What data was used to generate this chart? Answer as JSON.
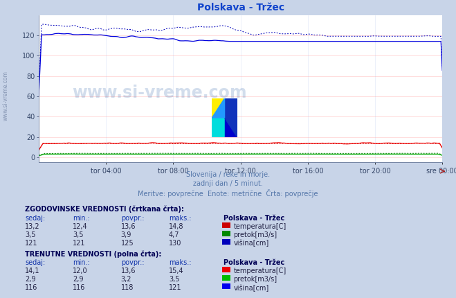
{
  "title": "Polskava - Tržec",
  "title_color": "#1144cc",
  "bg_color": "#c8d4e8",
  "plot_bg_color": "#ffffff",
  "grid_color": "#ff9999",
  "grid_color_v": "#bbccee",
  "xlabel_times": [
    "tor 04:00",
    "tor 08:00",
    "tor 12:00",
    "tor 16:00",
    "tor 20:00",
    "sre 00:00"
  ],
  "ylabel_values": [
    0,
    20,
    40,
    60,
    80,
    100,
    120
  ],
  "ymax": 140,
  "ymin": -5,
  "subtitle1": "Slovenija / reke in morje.",
  "subtitle2": "zadnji dan / 5 minut.",
  "subtitle3": "Meritve: povprečne  Enote: metrične  Črta: povprečje",
  "watermark": "www.si-vreme.com",
  "hist_label": "ZGODOVINSKE VREDNOSTI (črtkana črta):",
  "curr_label": "TRENUTNE VREDNOSTI (polna črta):",
  "table_headers": [
    "sedaj:",
    "min.:",
    "povpr.:",
    "maks.:"
  ],
  "station_label": "Polskava - Tržec",
  "hist_rows": [
    {
      "sedaj": "13,2",
      "min": "12,4",
      "povpr": "13,6",
      "maks": "14,8",
      "color": "#cc0000",
      "label": "temperatura[C]"
    },
    {
      "sedaj": "3,5",
      "min": "3,5",
      "povpr": "3,9",
      "maks": "4,7",
      "color": "#008800",
      "label": "pretok[m3/s]"
    },
    {
      "sedaj": "121",
      "min": "121",
      "povpr": "125",
      "maks": "130",
      "color": "#0000bb",
      "label": "višina[cm]"
    }
  ],
  "curr_rows": [
    {
      "sedaj": "14,1",
      "min": "12,0",
      "povpr": "13,6",
      "maks": "15,4",
      "color": "#ee0000",
      "label": "temperatura[C]"
    },
    {
      "sedaj": "2,9",
      "min": "2,9",
      "povpr": "3,2",
      "maks": "3,5",
      "color": "#00bb00",
      "label": "pretok[m3/s]"
    },
    {
      "sedaj": "116",
      "min": "116",
      "povpr": "118",
      "maks": "121",
      "color": "#0000ee",
      "label": "višina[cm]"
    }
  ],
  "n_points": 288
}
